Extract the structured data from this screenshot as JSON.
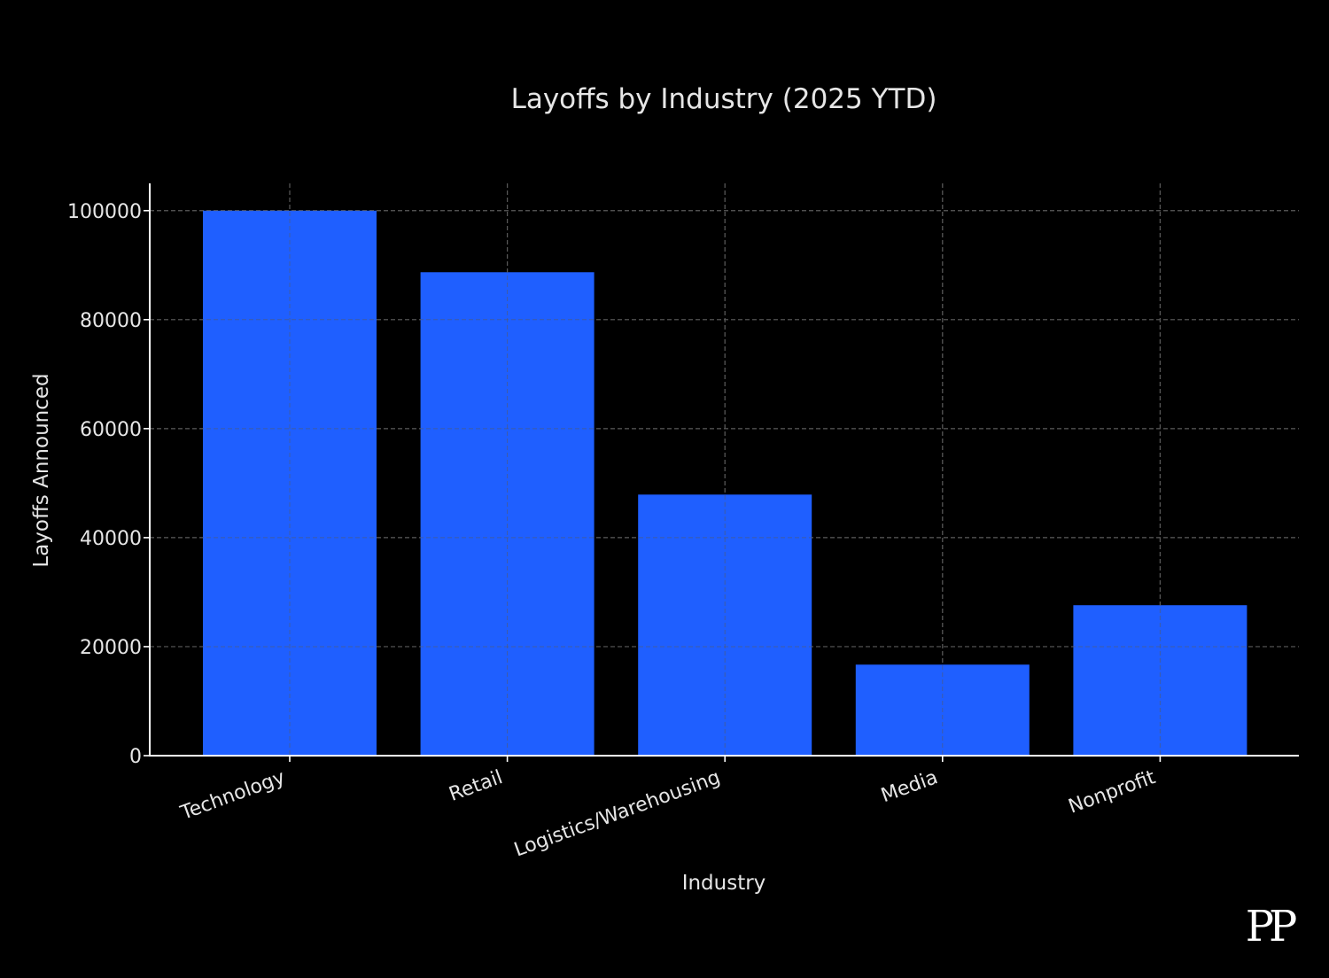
{
  "chart_data": {
    "type": "bar",
    "title": "Layoffs by Industry (2025 YTD)",
    "xlabel": "Industry",
    "ylabel": "Layoffs Announced",
    "categories": [
      "Technology",
      "Retail",
      "Logistics/Warehousing",
      "Media",
      "Nonprofit"
    ],
    "values": [
      100000,
      88700,
      47900,
      16700,
      27600
    ],
    "ylim": [
      0,
      105000
    ],
    "yticks": [
      0,
      20000,
      40000,
      60000,
      80000,
      100000
    ],
    "ytick_labels": [
      "0",
      "20000",
      "40000",
      "60000",
      "80000",
      "100000"
    ],
    "grid": true,
    "colors": {
      "background": "#000000",
      "bar": "#1f5fff",
      "text": "#e6e6e6",
      "axis": "#ffffff",
      "grid": "#5a5a5a"
    }
  },
  "watermark": {
    "text": "PP"
  }
}
